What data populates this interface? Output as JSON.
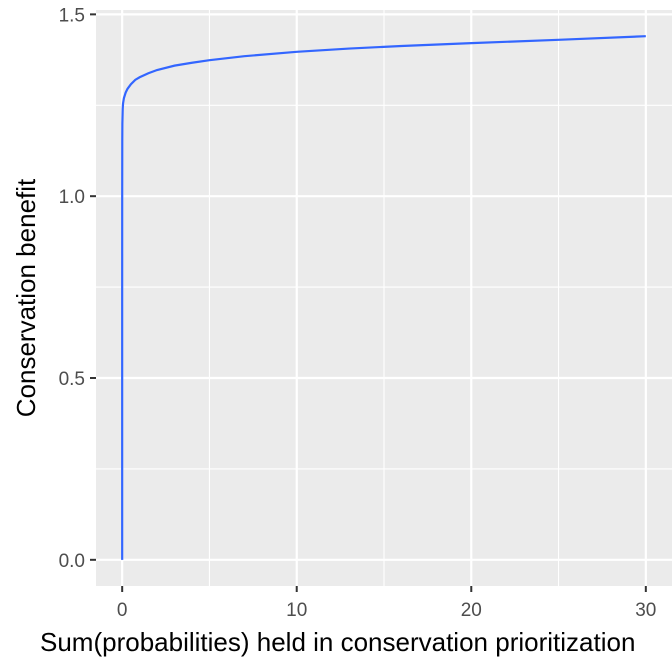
{
  "chart_data": {
    "type": "line",
    "xlabel": "Sum(probabilities) held in conservation prioritization",
    "ylabel": "Conservation benefit",
    "xlim": [
      -1.5,
      31.5
    ],
    "ylim": [
      -0.072,
      1.512
    ],
    "x_ticks": [
      0,
      10,
      20,
      30
    ],
    "x_tick_labels": [
      "0",
      "10",
      "20",
      "30"
    ],
    "y_ticks": [
      0.0,
      0.5,
      1.0,
      1.5
    ],
    "y_tick_labels": [
      "0.0",
      "0.5",
      "1.0",
      "1.5"
    ],
    "grid": true,
    "legend": "none",
    "colors": {
      "panel": "#EBEBEB",
      "grid": "#FFFFFF",
      "line": "#3366FF"
    },
    "series": [
      {
        "x": [
          0,
          0.0001,
          0.001,
          0.005,
          0.01,
          0.03,
          0.05,
          0.1,
          0.2,
          0.3,
          0.5,
          0.75,
          1,
          1.5,
          2,
          3,
          4,
          5,
          7,
          10,
          13,
          16,
          20,
          25,
          30
        ],
        "y": [
          0,
          0.7,
          1.0,
          1.15,
          1.2,
          1.24,
          1.255,
          1.27,
          1.285,
          1.295,
          1.308,
          1.32,
          1.327,
          1.338,
          1.347,
          1.359,
          1.367,
          1.374,
          1.385,
          1.397,
          1.406,
          1.413,
          1.421,
          1.43,
          1.44
        ]
      }
    ]
  }
}
